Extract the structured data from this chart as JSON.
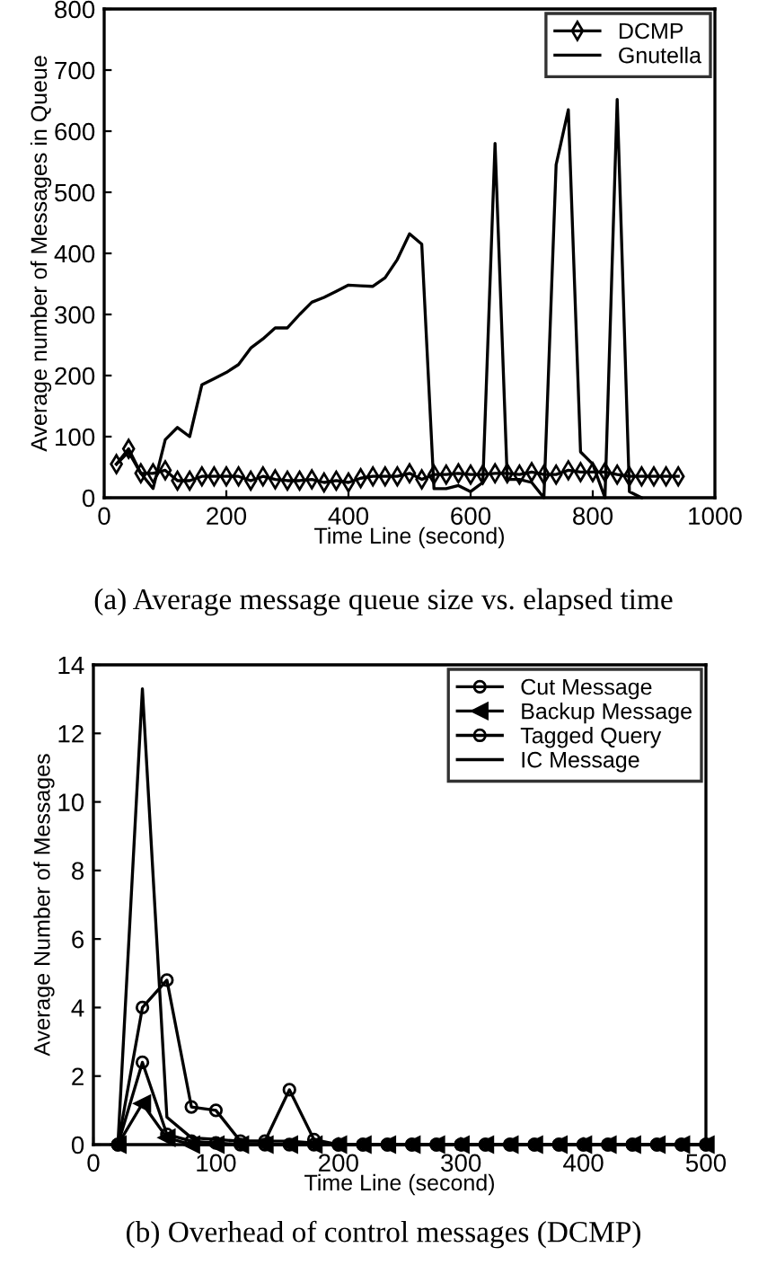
{
  "chart_data": [
    {
      "type": "line",
      "xlabel": "Time Line (second)",
      "ylabel": "Average number of Messages in Queue",
      "xlim": [
        0,
        1000
      ],
      "xticks": [
        0,
        200,
        400,
        600,
        800,
        1000
      ],
      "ylim": [
        0,
        800
      ],
      "yticks": [
        0,
        100,
        200,
        300,
        400,
        500,
        600,
        700,
        800
      ],
      "grid": false,
      "legend": "top right",
      "annotations": [
        "(a) Average message queue size vs. elapsed time"
      ],
      "series": [
        {
          "name": "DCMP",
          "color": "#000000",
          "marker": "diamond",
          "x": [
            20,
            40,
            60,
            80,
            100,
            120,
            140,
            160,
            180,
            200,
            220,
            240,
            260,
            280,
            300,
            320,
            340,
            360,
            380,
            400,
            420,
            440,
            460,
            480,
            500,
            520,
            540,
            560,
            580,
            600,
            620,
            640,
            660,
            680,
            700,
            720,
            740,
            760,
            780,
            800,
            820,
            840,
            860,
            880,
            900,
            920,
            940
          ],
          "values": [
            55,
            80,
            40,
            40,
            45,
            28,
            28,
            35,
            35,
            35,
            35,
            28,
            35,
            30,
            28,
            28,
            30,
            25,
            28,
            25,
            32,
            35,
            35,
            35,
            40,
            30,
            38,
            38,
            40,
            38,
            38,
            40,
            40,
            38,
            42,
            38,
            38,
            45,
            42,
            42,
            42,
            38,
            35,
            35,
            35,
            35,
            35
          ]
        },
        {
          "name": "Gnutella",
          "color": "#000000",
          "marker": "none",
          "x": [
            20,
            40,
            60,
            80,
            100,
            120,
            140,
            160,
            180,
            200,
            220,
            240,
            260,
            280,
            300,
            320,
            340,
            360,
            380,
            400,
            420,
            440,
            460,
            480,
            500,
            520,
            540,
            560,
            580,
            600,
            620,
            640,
            660,
            680,
            700,
            720,
            740,
            760,
            780,
            800,
            820,
            840,
            860,
            880
          ],
          "values": [
            55,
            75,
            40,
            15,
            95,
            115,
            100,
            185,
            195,
            205,
            218,
            245,
            260,
            278,
            278,
            300,
            320,
            328,
            338,
            348,
            347,
            346,
            360,
            390,
            432,
            415,
            15,
            15,
            20,
            10,
            25,
            580,
            30,
            30,
            25,
            0,
            545,
            635,
            75,
            55,
            0,
            652,
            10,
            0
          ]
        }
      ]
    },
    {
      "type": "line",
      "xlabel": "Time Line (second)",
      "ylabel": "Average Number of Messages",
      "xlim": [
        0,
        500
      ],
      "xticks": [
        0,
        100,
        200,
        300,
        400,
        500
      ],
      "ylim": [
        0,
        14
      ],
      "yticks": [
        0,
        2,
        4,
        6,
        8,
        10,
        12,
        14
      ],
      "grid": false,
      "legend": "top right",
      "annotations": [
        "(b) Overhead of control messages (DCMP)"
      ],
      "x": [
        20,
        40,
        60,
        80,
        100,
        120,
        140,
        160,
        180,
        200,
        220,
        240,
        260,
        280,
        300,
        320,
        340,
        360,
        380,
        400,
        420,
        440,
        460,
        480,
        500
      ],
      "series": [
        {
          "name": "Cut Message",
          "color": "#000000",
          "marker": "circle",
          "values": [
            0,
            2.4,
            0.3,
            0.1,
            0.05,
            0,
            0,
            0,
            0,
            0,
            0,
            0,
            0,
            0,
            0,
            0,
            0,
            0,
            0,
            0,
            0,
            0,
            0,
            0,
            0
          ]
        },
        {
          "name": "Backup Message",
          "color": "#000000",
          "marker": "triangle",
          "values": [
            0,
            1.2,
            0.2,
            0,
            0,
            0,
            0,
            0,
            0,
            0,
            0,
            0,
            0,
            0,
            0,
            0,
            0,
            0,
            0,
            0,
            0,
            0,
            0,
            0,
            0
          ]
        },
        {
          "name": "Tagged Query",
          "color": "#000000",
          "marker": "circle",
          "values": [
            0,
            4,
            4.8,
            1.1,
            1.0,
            0.1,
            0.1,
            1.6,
            0.15,
            0,
            0,
            0,
            0,
            0,
            0,
            0,
            0,
            0,
            0,
            0,
            0,
            0,
            0,
            0,
            0
          ]
        },
        {
          "name": "IC Message",
          "color": "#000000",
          "marker": "none",
          "values": [
            0,
            13.3,
            0.8,
            0.2,
            0.15,
            0.1,
            0.1,
            0.1,
            0.05,
            0,
            0,
            0,
            0,
            0,
            0,
            0,
            0,
            0,
            0,
            0,
            0,
            0,
            0,
            0,
            0
          ]
        }
      ]
    }
  ]
}
